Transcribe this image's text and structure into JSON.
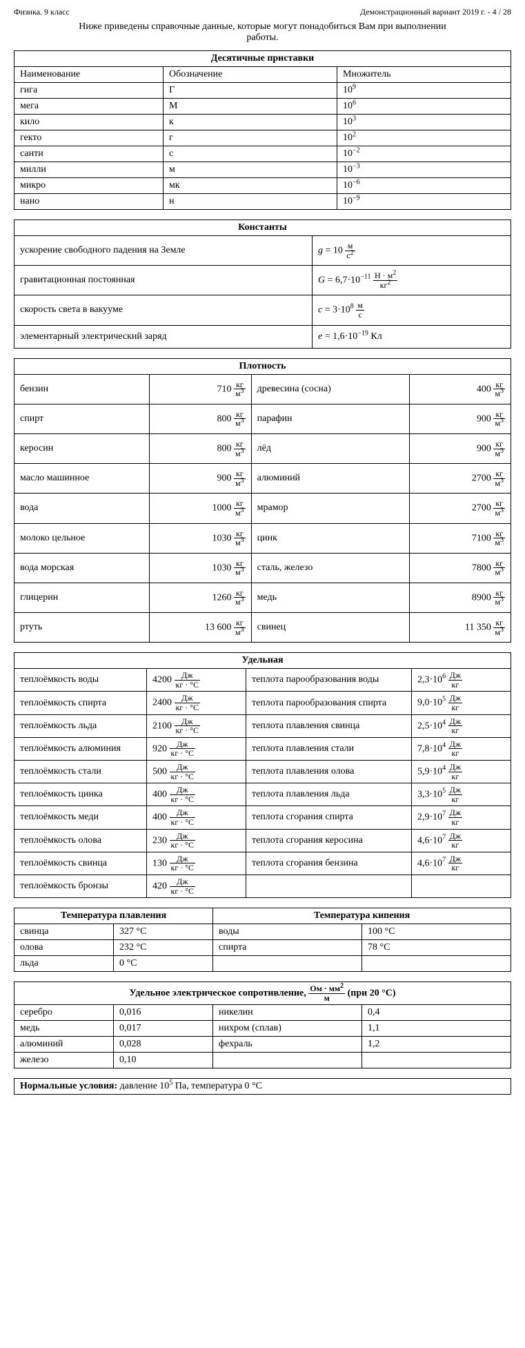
{
  "header": {
    "left": "Физика. 9 класс",
    "right": "Демонстрационный вариант 2019 г. - 4 / 28"
  },
  "intro": "Ниже приведены справочные данные, которые могут понадобиться Вам при выполнении работы.",
  "prefixes": {
    "title": "Десятичные приставки",
    "cols": [
      "Наименование",
      "Обозначение",
      "Множитель"
    ],
    "rows": [
      [
        "гига",
        "Г",
        "9"
      ],
      [
        "мега",
        "М",
        "6"
      ],
      [
        "кило",
        "к",
        "3"
      ],
      [
        "гекто",
        "г",
        "2"
      ],
      [
        "санти",
        "с",
        "−2"
      ],
      [
        "милли",
        "м",
        "−3"
      ],
      [
        "микро",
        "мк",
        "−6"
      ],
      [
        "нано",
        "н",
        "−9"
      ]
    ]
  },
  "constants": {
    "title": "Константы",
    "rows": [
      {
        "label": "ускорение свободного падения на Земле",
        "html": "<i>g</i> = 10 <span class='frac'><span class='num'>м</span><span class='den'>с<sup>2</sup></span></span>"
      },
      {
        "label": "гравитационная постоянная",
        "html": "<i>G</i> = 6,7·10<sup>−11</sup> <span class='frac'><span class='num'>Н · м<sup>2</sup></span><span class='den'>кг<sup>2</sup></span></span>"
      },
      {
        "label": "скорость света в вакууме",
        "html": "<i>c</i> = 3·10<sup>8</sup> <span class='frac'><span class='num'>м</span><span class='den'>с</span></span>"
      },
      {
        "label": "элементарный электрический заряд",
        "html": "<i>e</i> = 1,6·10<sup>−19</sup> Кл"
      }
    ]
  },
  "density": {
    "title": "Плотность",
    "rows": [
      [
        "бензин",
        "710",
        "древесина (сосна)",
        "400"
      ],
      [
        "спирт",
        "800",
        "парафин",
        "900"
      ],
      [
        "керосин",
        "800",
        "лёд",
        "900"
      ],
      [
        "масло машинное",
        "900",
        "алюминий",
        "2700"
      ],
      [
        "вода",
        "1000",
        "мрамор",
        "2700"
      ],
      [
        "молоко цельное",
        "1030",
        "цинк",
        "7100"
      ],
      [
        "вода морская",
        "1030",
        "сталь, железо",
        "7800"
      ],
      [
        "глицерин",
        "1260",
        "медь",
        "8900"
      ],
      [
        "ртуть",
        "13 600",
        "свинец",
        "11 350"
      ]
    ],
    "unit": {
      "num": "кг",
      "den": "м<sup>3</sup>"
    }
  },
  "specific": {
    "title": "Удельная",
    "unitC": {
      "num": "Дж",
      "den": "кг · °С"
    },
    "unitH": {
      "num": "Дж",
      "den": "кг"
    },
    "rows": [
      [
        "теплоёмкость воды",
        "4200",
        "теплота парообразования воды",
        "2,3·10<sup>6</sup>"
      ],
      [
        "теплоёмкость спирта",
        "2400",
        "теплота парообразования спирта",
        "9,0·10<sup>5</sup>"
      ],
      [
        "теплоёмкость льда",
        "2100",
        "теплота плавления свинца",
        "2,5·10<sup>4</sup>"
      ],
      [
        "теплоёмкость алюминия",
        "920",
        "теплота плавления стали",
        "7,8·10<sup>4</sup>"
      ],
      [
        "теплоёмкость стали",
        "500",
        "теплота плавления олова",
        "5,9·10<sup>4</sup>"
      ],
      [
        "теплоёмкость цинка",
        "400",
        "теплота плавления льда",
        "3,3·10<sup>5</sup>"
      ],
      [
        "теплоёмкость меди",
        "400",
        "теплота сгорания спирта",
        "2,9·10<sup>7</sup>"
      ],
      [
        "теплоёмкость олова",
        "230",
        "теплота сгорания керосина",
        "4,6·10<sup>7</sup>"
      ],
      [
        "теплоёмкость свинца",
        "130",
        "теплота сгорания бензина",
        "4,6·10<sup>7</sup>"
      ],
      [
        "теплоёмкость бронзы",
        "420",
        "",
        ""
      ]
    ]
  },
  "temps": {
    "meltTitle": "Температура плавления",
    "boilTitle": "Температура кипения",
    "rows": [
      [
        "свинца",
        "327 °С",
        "воды",
        "100 °С"
      ],
      [
        "олова",
        "232 °С",
        "спирта",
        "78 °С"
      ],
      [
        "льда",
        "0 °С",
        "",
        ""
      ]
    ]
  },
  "resist": {
    "titlePre": "Удельное электрическое сопротивление,",
    "unit": {
      "num": "Ом · мм<sup>2</sup>",
      "den": "м"
    },
    "titlePost": "(при 20 °С)",
    "rows": [
      [
        "серебро",
        "0,016",
        "никелин",
        "0,4"
      ],
      [
        "медь",
        "0,017",
        "нихром (сплав)",
        "1,1"
      ],
      [
        "алюминий",
        "0,028",
        "фехраль",
        "1,2"
      ],
      [
        "железо",
        "0,10",
        "",
        ""
      ]
    ]
  },
  "normal": {
    "bold": "Нормальные условия:",
    "text": " давление 10<sup>5</sup> Па, температура 0 °С"
  }
}
